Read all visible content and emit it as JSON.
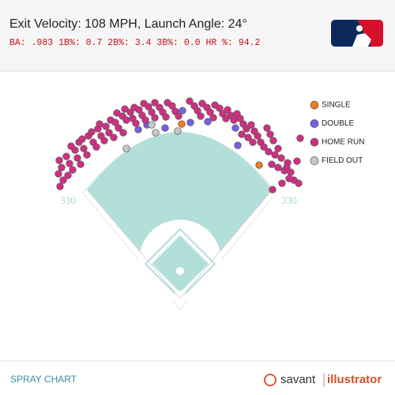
{
  "chart_data": {
    "type": "spray",
    "title": "Exit Velocity: 108 MPH, Launch Angle: 24°",
    "stats": "BA: .983 1B%: 0.7 2B%: 3.4 3B%: 0.0 HR %: 94.2",
    "distance_labels": [
      "330",
      "330"
    ],
    "footer": "SPRAY CHART",
    "brand": [
      "savant",
      "illustrator"
    ],
    "series": [
      {
        "name": "SINGLE",
        "color": "#f07e1b",
        "x": [
          230,
          328
        ],
        "y": [
          157,
          209
        ]
      },
      {
        "name": "DOUBLE",
        "color": "#7a5de0",
        "x": [
          175,
          209,
          241,
          263,
          298,
          301,
          231,
          186
        ],
        "y": [
          164,
          162,
          155,
          154,
          162,
          184,
          140,
          158
        ]
      },
      {
        "name": "HOME RUN",
        "color": "#cf2f82",
        "x": [
          75,
          78,
          74,
          80,
          76,
          84,
          88,
          92,
          86,
          95,
          98,
          102,
          90,
          100,
          106,
          110,
          104,
          112,
          118,
          122,
          116,
          124,
          128,
          132,
          126,
          134,
          138,
          144,
          140,
          146,
          150,
          156,
          148,
          155,
          160,
          158,
          165,
          168,
          172,
          170,
          176,
          180,
          184,
          182,
          188,
          192,
          196,
          196,
          202,
          206,
          210,
          212,
          218,
          222,
          226,
          240,
          246,
          250,
          254,
          256,
          262,
          266,
          270,
          272,
          278,
          282,
          286,
          288,
          292,
          296,
          300,
          304,
          308,
          312,
          306,
          314,
          318,
          322,
          326,
          320,
          330,
          334,
          338,
          342,
          346,
          340,
          348,
          352,
          356,
          344,
          352,
          360,
          364,
          368,
          372,
          378,
          366,
          376,
          380,
          345,
          357,
          363
        ],
        "y": [
          203,
          212,
          220,
          228,
          236,
          198,
          207,
          215,
          222,
          190,
          200,
          208,
          185,
          180,
          188,
          196,
          176,
          172,
          180,
          186,
          167,
          163,
          172,
          178,
          157,
          160,
          168,
          174,
          152,
          155,
          162,
          168,
          143,
          147,
          152,
          138,
          142,
          150,
          156,
          136,
          139,
          146,
          152,
          131,
          135,
          142,
          149,
          130,
          136,
          142,
          148,
          130,
          134,
          141,
          147,
          128,
          134,
          140,
          147,
          131,
          136,
          142,
          149,
          133,
          137,
          144,
          150,
          139,
          146,
          152,
          144,
          150,
          157,
          163,
          170,
          174,
          158,
          166,
          172,
          180,
          180,
          186,
          162,
          170,
          178,
          192,
          196,
          188,
          200,
          208,
          212,
          216,
          206,
          218,
          228,
          232,
          226,
          204,
          175,
          240,
          232,
          212
        ]
      },
      {
        "name": "FIELD OUT",
        "color": "#c8c8c8",
        "x": [
          160,
          197,
          225,
          192
        ],
        "y": [
          188,
          168,
          166,
          158
        ]
      }
    ]
  }
}
